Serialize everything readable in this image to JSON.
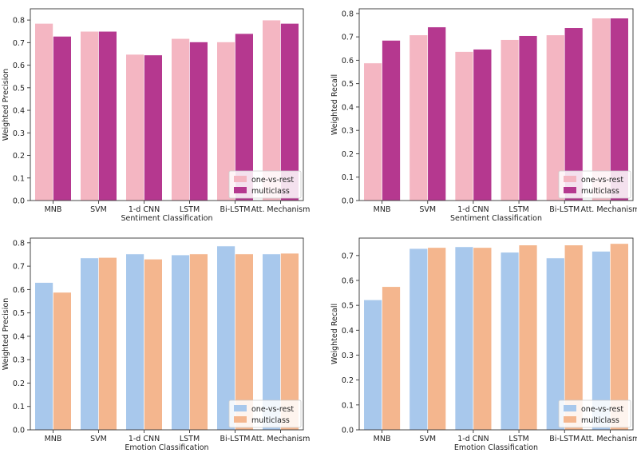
{
  "chart_data": [
    {
      "type": "bar",
      "title": "",
      "xlabel": "Sentiment Classification",
      "ylabel": "Weighted Precision",
      "ylim": [
        0,
        0.85
      ],
      "yticks": [
        "0.0",
        "0.1",
        "0.2",
        "0.3",
        "0.4",
        "0.5",
        "0.6",
        "0.7",
        "0.8"
      ],
      "grid": false,
      "legend_position": "bottom-right",
      "categories": [
        "MNB",
        "SVM",
        "1-d CNN",
        "LSTM",
        "Bi-LSTM",
        "Att. Mechanism"
      ],
      "series": [
        {
          "name": "one-vs-rest",
          "color": "#f4b6c2",
          "values": [
            0.785,
            0.75,
            0.648,
            0.718,
            0.703,
            0.8
          ]
        },
        {
          "name": "multiclass",
          "color": "#b5388f",
          "values": [
            0.728,
            0.75,
            0.645,
            0.703,
            0.74,
            0.785
          ]
        }
      ]
    },
    {
      "type": "bar",
      "title": "",
      "xlabel": "Sentiment Classification",
      "ylabel": "Weighted Recall",
      "ylim": [
        0,
        0.82
      ],
      "yticks": [
        "0.0",
        "0.1",
        "0.2",
        "0.3",
        "0.4",
        "0.5",
        "0.6",
        "0.7",
        "0.8"
      ],
      "grid": false,
      "legend_position": "bottom-right",
      "categories": [
        "MNB",
        "SVM",
        "1-d CNN",
        "LSTM",
        "Bi-LSTM",
        "Att. Mechanism"
      ],
      "series": [
        {
          "name": "one-vs-rest",
          "color": "#f4b6c2",
          "values": [
            0.588,
            0.708,
            0.637,
            0.688,
            0.708,
            0.78
          ]
        },
        {
          "name": "multiclass",
          "color": "#b5388f",
          "values": [
            0.685,
            0.742,
            0.647,
            0.705,
            0.739,
            0.78
          ]
        }
      ]
    },
    {
      "type": "bar",
      "title": "",
      "xlabel": "Emotion Classification",
      "ylabel": "Weighted Precision",
      "ylim": [
        0,
        0.82
      ],
      "yticks": [
        "0.0",
        "0.1",
        "0.2",
        "0.3",
        "0.4",
        "0.5",
        "0.6",
        "0.7",
        "0.8"
      ],
      "grid": false,
      "legend_position": "bottom-right",
      "categories": [
        "MNB",
        "SVM",
        "1-d CNN",
        "LSTM",
        "Bi-LSTM",
        "Att. Mechanism"
      ],
      "series": [
        {
          "name": "one-vs-rest",
          "color": "#a8c8ec",
          "values": [
            0.63,
            0.735,
            0.752,
            0.748,
            0.786,
            0.752
          ]
        },
        {
          "name": "multiclass",
          "color": "#f4b68e",
          "values": [
            0.588,
            0.737,
            0.73,
            0.752,
            0.752,
            0.755
          ]
        }
      ]
    },
    {
      "type": "bar",
      "title": "",
      "xlabel": "Emotion Classification",
      "ylabel": "Weighted Recall",
      "ylim": [
        0,
        0.77
      ],
      "yticks": [
        "0.0",
        "0.1",
        "0.2",
        "0.3",
        "0.4",
        "0.5",
        "0.6",
        "0.7"
      ],
      "grid": false,
      "legend_position": "bottom-right",
      "categories": [
        "MNB",
        "SVM",
        "1-d CNN",
        "LSTM",
        "Bi-LSTM",
        "Att. Mechanism"
      ],
      "series": [
        {
          "name": "one-vs-rest",
          "color": "#a8c8ec",
          "values": [
            0.522,
            0.728,
            0.735,
            0.713,
            0.69,
            0.717
          ]
        },
        {
          "name": "multiclass",
          "color": "#f4b68e",
          "values": [
            0.575,
            0.732,
            0.732,
            0.742,
            0.742,
            0.748
          ]
        }
      ]
    }
  ]
}
